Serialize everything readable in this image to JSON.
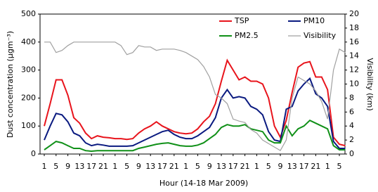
{
  "chart_data": {
    "type": "line",
    "x_label": "Hour (14-18 Mar 2009)",
    "y_label": "Dust concentration (μgm⁻³)",
    "y2_label": "Visibility (km)",
    "categories": [
      "1",
      null,
      "5",
      null,
      "9",
      null,
      "13",
      null,
      "17",
      null,
      "21",
      null,
      "1",
      null,
      "5",
      null,
      "9",
      null,
      "13",
      null,
      "17",
      null,
      "21",
      null,
      "1",
      null,
      "5",
      null,
      "9",
      null,
      "13",
      null,
      "17",
      null,
      "21",
      null,
      "1",
      null,
      "5",
      null,
      "9",
      null,
      "13",
      null,
      "17",
      null,
      "21",
      null,
      "1",
      null,
      "5",
      null
    ],
    "series": [
      {
        "name": "TSP",
        "color": "#e8141c",
        "values": [
          100,
          180,
          265,
          265,
          210,
          130,
          110,
          75,
          55,
          65,
          60,
          58,
          55,
          55,
          52,
          55,
          75,
          90,
          100,
          115,
          100,
          90,
          80,
          75,
          72,
          75,
          90,
          115,
          135,
          180,
          260,
          335,
          300,
          265,
          275,
          260,
          260,
          250,
          200,
          100,
          60,
          120,
          220,
          310,
          325,
          330,
          275,
          275,
          230,
          60,
          35,
          30
        ]
      },
      {
        "name": "PM10",
        "color": "#0a1a80",
        "values": [
          50,
          100,
          145,
          140,
          115,
          75,
          65,
          40,
          30,
          35,
          32,
          28,
          28,
          28,
          28,
          30,
          40,
          50,
          60,
          70,
          80,
          85,
          70,
          60,
          55,
          55,
          65,
          80,
          95,
          130,
          200,
          230,
          200,
          205,
          200,
          170,
          160,
          140,
          80,
          50,
          45,
          160,
          170,
          225,
          250,
          270,
          215,
          200,
          170,
          45,
          20,
          20
        ]
      },
      {
        "name": "PM2.5",
        "color": "#109018",
        "values": [
          15,
          30,
          45,
          40,
          30,
          20,
          20,
          12,
          10,
          12,
          12,
          12,
          12,
          12,
          12,
          12,
          20,
          25,
          30,
          35,
          38,
          40,
          35,
          30,
          28,
          28,
          32,
          40,
          55,
          70,
          95,
          105,
          100,
          100,
          105,
          90,
          85,
          80,
          50,
          40,
          40,
          100,
          65,
          90,
          100,
          120,
          110,
          100,
          90,
          30,
          15,
          15
        ]
      },
      {
        "name": "Visibility",
        "color": "#a0a0a0",
        "axis": "y2",
        "values": [
          16,
          16,
          14.5,
          14.8,
          15.5,
          16,
          16,
          16,
          16,
          16,
          16,
          16,
          16,
          15.5,
          14.2,
          14.5,
          15.5,
          15.3,
          15.3,
          14.8,
          15,
          15,
          15,
          14.8,
          14.5,
          14,
          13.5,
          12.5,
          11,
          8.5,
          8,
          7.2,
          5,
          4.7,
          4.5,
          3.5,
          3,
          2,
          1.5,
          1,
          0.5,
          2,
          8,
          11,
          10.5,
          10,
          9,
          7.5,
          5,
          12,
          15,
          14.5
        ]
      }
    ],
    "ylim": [
      0,
      500
    ],
    "yticks": [
      0,
      100,
      200,
      300,
      400,
      500
    ],
    "y2lim": [
      0,
      20
    ],
    "y2ticks": [
      0,
      2,
      4,
      6,
      8,
      10,
      12,
      14,
      16,
      18,
      20
    ],
    "grid": false
  }
}
